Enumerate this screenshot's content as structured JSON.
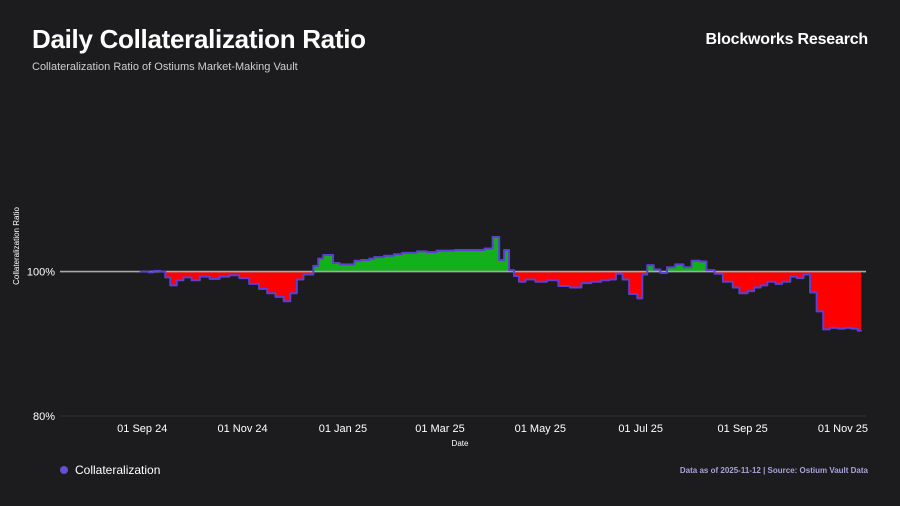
{
  "header": {
    "title": "Daily Collateralization Ratio",
    "subtitle": "Collateralization Ratio of Ostiums Market-Making Vault",
    "brand": "Blockworks Research"
  },
  "footer": {
    "legend_label": "Collateralization",
    "source": "Data as of 2025-11-12 | Source: Ostium Vault Data"
  },
  "colors": {
    "line": "#5b3fd6",
    "above": "#13b01c",
    "below": "#ff0000",
    "baseline": "#a8a8a8"
  },
  "chart_data": {
    "type": "area",
    "title": "Daily Collateralization Ratio",
    "xlabel": "Date",
    "ylabel": "Collateralization Ratio",
    "baseline": 100,
    "ylim": [
      80,
      121
    ],
    "xlim": [
      "2024-07-13",
      "2025-11-15"
    ],
    "y_ticks": [
      100,
      80
    ],
    "y_tick_labels": [
      "100%",
      "80%"
    ],
    "x_ticks": [
      "2024-09-01",
      "2024-11-01",
      "2025-01-01",
      "2025-03-01",
      "2025-05-01",
      "2025-07-01",
      "2025-09-01",
      "2025-11-01"
    ],
    "x_tick_labels": [
      "01 Sep 24",
      "01 Nov 24",
      "01 Jan 25",
      "01 Mar 25",
      "01 May 25",
      "01 Jul 25",
      "01 Sep 25",
      "01 Nov 25"
    ],
    "series": [
      {
        "name": "Collateralization",
        "x": [
          "2024-08-31",
          "2024-09-05",
          "2024-09-08",
          "2024-09-12",
          "2024-09-15",
          "2024-09-18",
          "2024-09-22",
          "2024-09-26",
          "2024-10-01",
          "2024-10-06",
          "2024-10-12",
          "2024-10-18",
          "2024-10-24",
          "2024-10-30",
          "2024-11-05",
          "2024-11-11",
          "2024-11-16",
          "2024-11-21",
          "2024-11-26",
          "2024-11-30",
          "2024-12-04",
          "2024-12-08",
          "2024-12-14",
          "2024-12-17",
          "2024-12-20",
          "2024-12-26",
          "2024-12-30",
          "2025-01-03",
          "2025-01-08",
          "2025-01-12",
          "2025-01-17",
          "2025-01-20",
          "2025-01-26",
          "2025-02-01",
          "2025-02-06",
          "2025-02-11",
          "2025-02-15",
          "2025-02-21",
          "2025-02-27",
          "2025-03-04",
          "2025-03-10",
          "2025-03-16",
          "2025-03-22",
          "2025-03-28",
          "2025-04-02",
          "2025-04-06",
          "2025-04-09",
          "2025-04-12",
          "2025-04-15",
          "2025-04-18",
          "2025-04-20",
          "2025-04-22",
          "2025-04-28",
          "2025-05-05",
          "2025-05-12",
          "2025-05-19",
          "2025-05-26",
          "2025-06-01",
          "2025-06-07",
          "2025-06-12",
          "2025-06-16",
          "2025-06-20",
          "2025-06-24",
          "2025-06-29",
          "2025-07-02",
          "2025-07-05",
          "2025-07-09",
          "2025-07-13",
          "2025-07-17",
          "2025-07-22",
          "2025-07-27",
          "2025-08-01",
          "2025-08-06",
          "2025-08-10",
          "2025-08-15",
          "2025-08-20",
          "2025-08-26",
          "2025-08-30",
          "2025-09-04",
          "2025-09-08",
          "2025-09-12",
          "2025-09-16",
          "2025-09-21",
          "2025-09-25",
          "2025-09-30",
          "2025-10-04",
          "2025-10-08",
          "2025-10-12",
          "2025-10-16",
          "2025-10-20",
          "2025-10-24",
          "2025-10-29",
          "2025-11-02",
          "2025-11-06",
          "2025-11-10",
          "2025-11-12"
        ],
        "y": [
          100.0,
          99.9,
          100.1,
          100.0,
          99.2,
          98.1,
          98.8,
          99.2,
          98.8,
          99.3,
          99.0,
          99.3,
          99.5,
          99.1,
          98.3,
          97.6,
          97.0,
          96.5,
          95.9,
          97.0,
          98.9,
          99.6,
          100.8,
          101.8,
          102.3,
          101.2,
          101.0,
          101.0,
          101.5,
          101.6,
          101.8,
          102.0,
          102.2,
          102.4,
          102.6,
          102.6,
          102.8,
          102.7,
          102.9,
          102.9,
          103.0,
          103.0,
          103.0,
          103.2,
          104.8,
          101.6,
          103.0,
          100.2,
          99.4,
          98.6,
          98.6,
          98.9,
          98.6,
          98.8,
          98.0,
          97.8,
          98.4,
          98.6,
          98.8,
          98.9,
          99.7,
          98.9,
          96.9,
          96.3,
          99.6,
          100.9,
          100.3,
          99.8,
          100.6,
          101.0,
          100.6,
          101.5,
          101.4,
          100.2,
          99.7,
          98.6,
          97.8,
          97.0,
          97.3,
          97.8,
          98.1,
          98.6,
          98.3,
          98.6,
          99.3,
          99.1,
          99.6,
          97.1,
          94.5,
          92.0,
          92.2,
          92.1,
          92.2,
          92.1,
          91.8,
          91.8
        ]
      }
    ]
  }
}
